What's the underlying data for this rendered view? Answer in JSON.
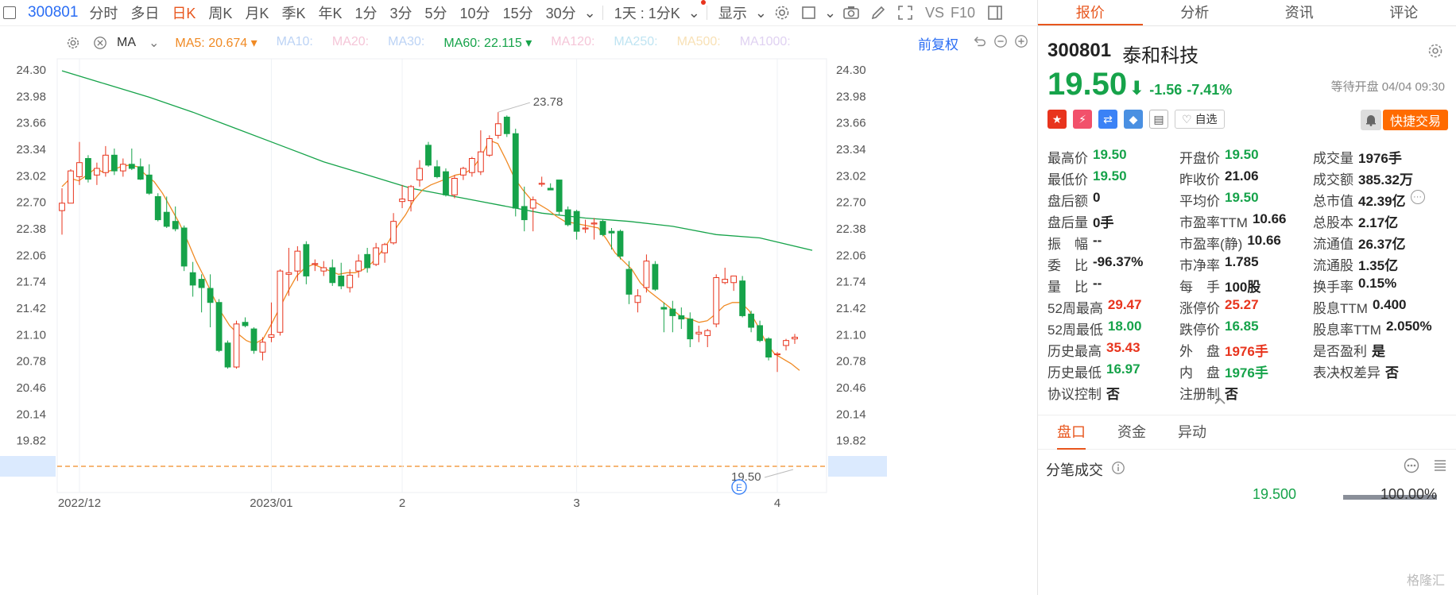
{
  "toolbar": {
    "code": "300801",
    "items": [
      "分时",
      "多日",
      "日K",
      "周K",
      "月K",
      "季K",
      "年K",
      "1分",
      "3分",
      "5分",
      "10分",
      "15分",
      "30分"
    ],
    "active": "日K",
    "interval": "1天 : 1分K",
    "display": "显示",
    "vs": "VS",
    "f10": "F10"
  },
  "ma_bar": {
    "type": "MA",
    "items": [
      {
        "label": "MA5:",
        "value": "20.674",
        "color": "#f08a24"
      },
      {
        "label": "MA10:",
        "value": "",
        "color": "#bcd3f5"
      },
      {
        "label": "MA20:",
        "value": "",
        "color": "#f5c6d8"
      },
      {
        "label": "MA30:",
        "value": "",
        "color": "#bcd3f5"
      },
      {
        "label": "MA60:",
        "value": "22.115",
        "color": "#16a34a"
      },
      {
        "label": "MA120:",
        "value": "",
        "color": "#f5c6d8"
      },
      {
        "label": "MA250:",
        "value": "",
        "color": "#bfe4f2"
      },
      {
        "label": "MA500:",
        "value": "",
        "color": "#f8e1b6"
      },
      {
        "label": "MA1000:",
        "value": "",
        "color": "#e0d2f2"
      }
    ],
    "adjust": "前复权"
  },
  "chart_data": {
    "type": "candlestick",
    "y_ticks": [
      "24.30",
      "23.98",
      "23.66",
      "23.34",
      "23.02",
      "22.70",
      "22.38",
      "22.06",
      "21.74",
      "21.42",
      "21.10",
      "20.78",
      "20.46",
      "20.14",
      "19.82",
      "19.50"
    ],
    "ylim": [
      19.5,
      24.3
    ],
    "x_ticks": [
      {
        "label": "2022/12",
        "index": 2
      },
      {
        "label": "2023/01",
        "index": 24
      },
      {
        "label": "2",
        "index": 39
      },
      {
        "label": "3",
        "index": 59
      },
      {
        "label": "4",
        "index": 82
      }
    ],
    "candles": [
      {
        "o": 22.59,
        "h": 22.86,
        "l": 22.3,
        "c": 22.68
      },
      {
        "o": 22.68,
        "h": 23.09,
        "l": 22.68,
        "c": 23.07
      },
      {
        "o": 23.0,
        "h": 23.42,
        "l": 22.9,
        "c": 23.17
      },
      {
        "o": 23.22,
        "h": 23.26,
        "l": 22.93,
        "c": 22.97
      },
      {
        "o": 23.02,
        "h": 23.17,
        "l": 22.9,
        "c": 23.1
      },
      {
        "o": 23.05,
        "h": 23.37,
        "l": 23.0,
        "c": 23.26
      },
      {
        "o": 23.26,
        "h": 23.34,
        "l": 23.02,
        "c": 23.07
      },
      {
        "o": 23.07,
        "h": 23.22,
        "l": 23.0,
        "c": 23.15
      },
      {
        "o": 23.15,
        "h": 23.34,
        "l": 23.08,
        "c": 23.1
      },
      {
        "o": 23.12,
        "h": 23.22,
        "l": 22.96,
        "c": 22.97
      },
      {
        "o": 23.02,
        "h": 23.15,
        "l": 22.78,
        "c": 22.8
      },
      {
        "o": 22.76,
        "h": 22.8,
        "l": 22.46,
        "c": 22.48
      },
      {
        "o": 22.57,
        "h": 22.76,
        "l": 22.38,
        "c": 22.4
      },
      {
        "o": 22.46,
        "h": 22.64,
        "l": 22.34,
        "c": 22.37
      },
      {
        "o": 22.38,
        "h": 22.41,
        "l": 21.86,
        "c": 21.92
      },
      {
        "o": 21.84,
        "h": 21.97,
        "l": 21.55,
        "c": 21.69
      },
      {
        "o": 21.76,
        "h": 21.82,
        "l": 21.36,
        "c": 21.66
      },
      {
        "o": 21.65,
        "h": 21.82,
        "l": 21.18,
        "c": 21.48
      },
      {
        "o": 21.48,
        "h": 21.52,
        "l": 20.88,
        "c": 20.9
      },
      {
        "o": 20.99,
        "h": 21.02,
        "l": 20.68,
        "c": 20.7
      },
      {
        "o": 20.7,
        "h": 21.26,
        "l": 20.68,
        "c": 21.22
      },
      {
        "o": 21.24,
        "h": 21.3,
        "l": 21.18,
        "c": 21.2
      },
      {
        "o": 21.16,
        "h": 21.18,
        "l": 20.86,
        "c": 20.9
      },
      {
        "o": 20.88,
        "h": 21.06,
        "l": 20.78,
        "c": 21.0
      },
      {
        "o": 21.06,
        "h": 21.48,
        "l": 21.0,
        "c": 21.09
      },
      {
        "o": 21.12,
        "h": 21.88,
        "l": 21.08,
        "c": 21.86
      },
      {
        "o": 21.82,
        "h": 22.14,
        "l": 21.56,
        "c": 21.84
      },
      {
        "o": 21.86,
        "h": 22.16,
        "l": 21.74,
        "c": 22.1
      },
      {
        "o": 22.18,
        "h": 22.22,
        "l": 21.7,
        "c": 21.8
      },
      {
        "o": 21.94,
        "h": 22.0,
        "l": 21.86,
        "c": 21.95
      },
      {
        "o": 21.86,
        "h": 21.98,
        "l": 21.8,
        "c": 21.9
      },
      {
        "o": 21.9,
        "h": 22.0,
        "l": 21.68,
        "c": 21.72
      },
      {
        "o": 21.8,
        "h": 21.96,
        "l": 21.64,
        "c": 21.68
      },
      {
        "o": 21.66,
        "h": 21.88,
        "l": 21.6,
        "c": 21.81
      },
      {
        "o": 21.86,
        "h": 22.06,
        "l": 21.78,
        "c": 21.98
      },
      {
        "o": 22.06,
        "h": 22.14,
        "l": 21.84,
        "c": 21.9
      },
      {
        "o": 21.94,
        "h": 22.2,
        "l": 21.92,
        "c": 22.14
      },
      {
        "o": 22.08,
        "h": 22.2,
        "l": 21.96,
        "c": 22.18
      },
      {
        "o": 22.2,
        "h": 22.56,
        "l": 22.18,
        "c": 22.46
      },
      {
        "o": 22.7,
        "h": 22.9,
        "l": 22.62,
        "c": 22.73
      },
      {
        "o": 22.71,
        "h": 22.9,
        "l": 22.58,
        "c": 22.88
      },
      {
        "o": 22.96,
        "h": 23.2,
        "l": 22.88,
        "c": 23.1
      },
      {
        "o": 23.38,
        "h": 23.42,
        "l": 23.12,
        "c": 23.14
      },
      {
        "o": 23.12,
        "h": 23.2,
        "l": 22.98,
        "c": 23.0
      },
      {
        "o": 23.06,
        "h": 23.1,
        "l": 22.76,
        "c": 22.78
      },
      {
        "o": 22.78,
        "h": 23.02,
        "l": 22.74,
        "c": 22.98
      },
      {
        "o": 23.02,
        "h": 23.12,
        "l": 22.96,
        "c": 23.1
      },
      {
        "o": 23.05,
        "h": 23.24,
        "l": 23.0,
        "c": 23.22
      },
      {
        "o": 23.06,
        "h": 23.56,
        "l": 23.02,
        "c": 23.3
      },
      {
        "o": 23.26,
        "h": 23.5,
        "l": 23.24,
        "c": 23.46
      },
      {
        "o": 23.5,
        "h": 23.78,
        "l": 23.46,
        "c": 23.64
      },
      {
        "o": 23.72,
        "h": 23.74,
        "l": 23.48,
        "c": 23.52
      },
      {
        "o": 23.52,
        "h": 23.58,
        "l": 22.52,
        "c": 22.62
      },
      {
        "o": 22.64,
        "h": 22.88,
        "l": 22.34,
        "c": 22.48
      },
      {
        "o": 22.62,
        "h": 22.76,
        "l": 22.34,
        "c": 22.72
      },
      {
        "o": 22.92,
        "h": 23.0,
        "l": 22.88,
        "c": 22.92
      },
      {
        "o": 22.86,
        "h": 22.92,
        "l": 22.84,
        "c": 22.84
      },
      {
        "o": 22.96,
        "h": 22.96,
        "l": 22.54,
        "c": 22.58
      },
      {
        "o": 22.6,
        "h": 22.64,
        "l": 22.4,
        "c": 22.42
      },
      {
        "o": 22.58,
        "h": 22.6,
        "l": 22.24,
        "c": 22.34
      },
      {
        "o": 22.38,
        "h": 22.48,
        "l": 22.32,
        "c": 22.38
      },
      {
        "o": 22.44,
        "h": 22.5,
        "l": 22.24,
        "c": 22.44
      },
      {
        "o": 22.46,
        "h": 22.48,
        "l": 22.28,
        "c": 22.3
      },
      {
        "o": 22.34,
        "h": 22.38,
        "l": 22.12,
        "c": 22.32
      },
      {
        "o": 22.34,
        "h": 22.36,
        "l": 22.0,
        "c": 22.04
      },
      {
        "o": 21.88,
        "h": 21.98,
        "l": 21.46,
        "c": 21.58
      },
      {
        "o": 21.48,
        "h": 21.64,
        "l": 21.36,
        "c": 21.56
      },
      {
        "o": 21.66,
        "h": 22.06,
        "l": 21.6,
        "c": 21.98
      },
      {
        "o": 21.94,
        "h": 21.98,
        "l": 21.62,
        "c": 21.64
      },
      {
        "o": 21.42,
        "h": 21.48,
        "l": 21.12,
        "c": 21.4
      },
      {
        "o": 21.4,
        "h": 21.5,
        "l": 21.12,
        "c": 21.32
      },
      {
        "o": 21.32,
        "h": 21.42,
        "l": 21.16,
        "c": 21.28
      },
      {
        "o": 21.28,
        "h": 21.36,
        "l": 20.94,
        "c": 21.04
      },
      {
        "o": 21.1,
        "h": 21.2,
        "l": 21.0,
        "c": 21.12
      },
      {
        "o": 21.08,
        "h": 21.16,
        "l": 20.94,
        "c": 21.14
      },
      {
        "o": 21.22,
        "h": 21.82,
        "l": 21.18,
        "c": 21.78
      },
      {
        "o": 21.72,
        "h": 21.9,
        "l": 21.7,
        "c": 21.76
      },
      {
        "o": 21.72,
        "h": 21.8,
        "l": 21.62,
        "c": 21.8
      },
      {
        "o": 21.74,
        "h": 21.8,
        "l": 21.3,
        "c": 21.32
      },
      {
        "o": 21.34,
        "h": 21.38,
        "l": 21.12,
        "c": 21.18
      },
      {
        "o": 21.2,
        "h": 21.26,
        "l": 21.0,
        "c": 21.02
      },
      {
        "o": 21.04,
        "h": 21.06,
        "l": 20.78,
        "c": 20.82
      },
      {
        "o": 20.86,
        "h": 20.88,
        "l": 20.64,
        "c": 20.86
      },
      {
        "o": 20.96,
        "h": 21.04,
        "l": 20.9,
        "c": 21.02
      },
      {
        "o": 21.04,
        "h": 21.1,
        "l": 20.98,
        "c": 21.06
      }
    ],
    "ma5": [
      22.88,
      22.98,
      22.95,
      23.02,
      23.1,
      23.05,
      23.08,
      23.12,
      23.14,
      23.12,
      23.02,
      22.94,
      22.8,
      22.62,
      22.44,
      22.22,
      21.98,
      21.78,
      21.56,
      21.36,
      21.2,
      21.1,
      21.02,
      20.98,
      21.04,
      21.22,
      21.42,
      21.62,
      21.8,
      21.9,
      21.94,
      21.9,
      21.86,
      21.82,
      21.84,
      21.84,
      21.88,
      21.96,
      22.08,
      22.22,
      22.4,
      22.54,
      22.72,
      22.84,
      22.9,
      22.94,
      22.98,
      23.02,
      23.04,
      23.1,
      23.24,
      23.44,
      23.4,
      23.2,
      22.98,
      22.84,
      22.72,
      22.66,
      22.6,
      22.52,
      22.46,
      22.44,
      22.42,
      22.4,
      22.38,
      22.24,
      22.08,
      21.98,
      21.88,
      21.72,
      21.62,
      21.54,
      21.46,
      21.38,
      21.3,
      21.28,
      21.24,
      21.26,
      21.34,
      21.44,
      21.48,
      21.48,
      21.38,
      21.2,
      21.0,
      20.86,
      20.8,
      20.74,
      20.66
    ],
    "ma60_points": [
      [
        0,
        24.28
      ],
      [
        5,
        24.12
      ],
      [
        10,
        23.96
      ],
      [
        15,
        23.78
      ],
      [
        20,
        23.58
      ],
      [
        25,
        23.38
      ],
      [
        30,
        23.18
      ],
      [
        35,
        23.02
      ],
      [
        40,
        22.86
      ],
      [
        45,
        22.76
      ],
      [
        50,
        22.66
      ],
      [
        55,
        22.56
      ],
      [
        60,
        22.5
      ],
      [
        65,
        22.46
      ],
      [
        70,
        22.4
      ],
      [
        75,
        22.3
      ],
      [
        80,
        22.26
      ],
      [
        86,
        22.11
      ]
    ],
    "high_label": "23.78",
    "low_label": "19.50",
    "current_price_label": "19.50"
  },
  "quote": {
    "tabs": [
      "报价",
      "分析",
      "资讯",
      "评论"
    ],
    "active_tab": "报价",
    "code": "300801",
    "name": "泰和科技",
    "price": "19.50",
    "change": "-1.56",
    "change_pct": "-7.41%",
    "status": "等待开盘 04/04 09:30",
    "watch_label": "自选",
    "trade_label": "快捷交易",
    "rows": [
      [
        [
          "最高价",
          "19.50",
          "dn"
        ],
        [
          "开盘价",
          "19.50",
          "dn"
        ],
        [
          "成交量",
          "1976手",
          ""
        ]
      ],
      [
        [
          "最低价",
          "19.50",
          "dn"
        ],
        [
          "昨收价",
          "21.06",
          ""
        ],
        [
          "成交额",
          "385.32万",
          ""
        ]
      ],
      [
        [
          "盘后额",
          "0",
          ""
        ],
        [
          "平均价",
          "19.50",
          "dn"
        ],
        [
          "总市值",
          "42.39亿",
          ""
        ]
      ],
      [
        [
          "盘后量",
          "0手",
          ""
        ],
        [
          "市盈率TTM",
          "10.66",
          ""
        ],
        [
          "总股本",
          "2.17亿",
          ""
        ]
      ],
      [
        [
          "振　幅",
          "--",
          ""
        ],
        [
          "市盈率(静)",
          "10.66",
          ""
        ],
        [
          "流通值",
          "26.37亿",
          ""
        ]
      ],
      [
        [
          "委　比",
          "-96.37%",
          ""
        ],
        [
          "市净率",
          "1.785",
          ""
        ],
        [
          "流通股",
          "1.35亿",
          ""
        ]
      ],
      [
        [
          "量　比",
          "--",
          ""
        ],
        [
          "每　手",
          "100股",
          ""
        ],
        [
          "换手率",
          "0.15%",
          ""
        ]
      ],
      [
        [
          "52周最高",
          "29.47",
          "up"
        ],
        [
          "涨停价",
          "25.27",
          "up"
        ],
        [
          "股息TTM",
          "0.400",
          ""
        ]
      ],
      [
        [
          "52周最低",
          "18.00",
          "dn"
        ],
        [
          "跌停价",
          "16.85",
          "dn"
        ],
        [
          "股息率TTM",
          "2.050%",
          ""
        ]
      ],
      [
        [
          "历史最高",
          "35.43",
          "up"
        ],
        [
          "外　盘",
          "1976手",
          "up"
        ],
        [
          "是否盈利",
          "是",
          ""
        ]
      ],
      [
        [
          "历史最低",
          "16.97",
          "dn"
        ],
        [
          "内　盘",
          "1976手",
          "dn"
        ],
        [
          "表决权差异",
          "否",
          ""
        ]
      ],
      [
        [
          "协议控制",
          "否",
          ""
        ],
        [
          "注册制",
          "否",
          ""
        ],
        [
          "",
          ""
        ]
      ]
    ],
    "sub_tabs": [
      "盘口",
      "资金",
      "异动"
    ],
    "tick_title": "分笔成交",
    "tick_price": "19.500",
    "tick_pct": "100.00%",
    "watermark": "格隆汇"
  }
}
